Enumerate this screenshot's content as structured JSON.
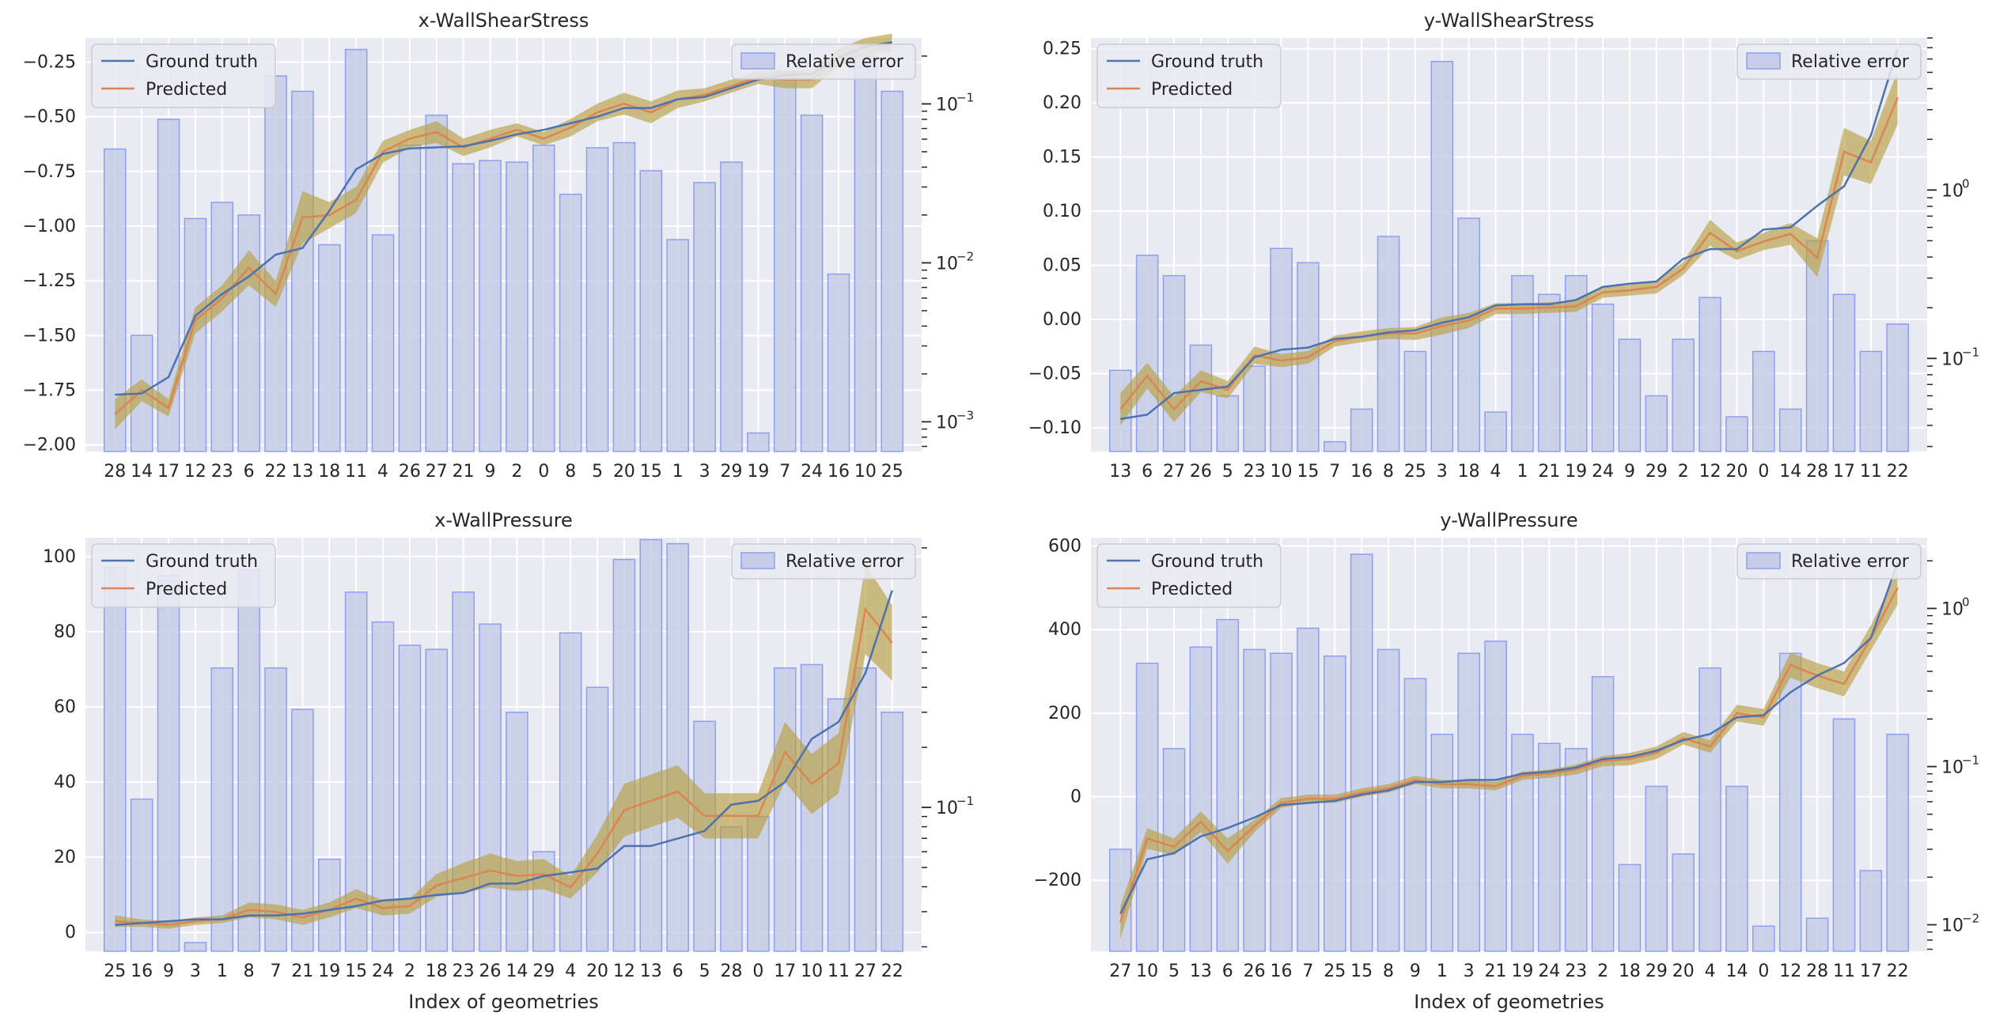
{
  "legend": {
    "ground_truth": "Ground truth",
    "predicted": "Predicted",
    "relative_error": "Relative error"
  },
  "xlabel": "Index of geometries",
  "colors": {
    "ground_truth": "#4c72b0",
    "predicted": "#dd8452",
    "band": "#b8a040",
    "bar_fill": "#c6cde8",
    "bar_edge": "#8f9ef0",
    "axes_bg": "#eaeaf2",
    "grid": "#ffffff"
  },
  "chart_data": [
    {
      "type": "line",
      "title": "x-WallShearStress",
      "categories": [
        "28",
        "14",
        "17",
        "12",
        "23",
        "6",
        "22",
        "13",
        "18",
        "11",
        "4",
        "26",
        "27",
        "21",
        "9",
        "2",
        "0",
        "8",
        "5",
        "20",
        "15",
        "1",
        "3",
        "29",
        "19",
        "7",
        "24",
        "16",
        "10",
        "25"
      ],
      "ground_truth": [
        -1.77,
        -1.765,
        -1.69,
        -1.41,
        -1.31,
        -1.23,
        -1.13,
        -1.1,
        -0.93,
        -0.74,
        -0.67,
        -0.645,
        -0.64,
        -0.635,
        -0.61,
        -0.58,
        -0.56,
        -0.53,
        -0.5,
        -0.46,
        -0.46,
        -0.42,
        -0.41,
        -0.37,
        -0.33,
        -0.31,
        -0.305,
        -0.23,
        -0.18,
        -0.16
      ],
      "predicted": [
        -1.86,
        -1.75,
        -1.83,
        -1.43,
        -1.33,
        -1.19,
        -1.31,
        -0.96,
        -0.95,
        -0.88,
        -0.66,
        -0.6,
        -0.57,
        -0.64,
        -0.6,
        -0.56,
        -0.6,
        -0.55,
        -0.48,
        -0.44,
        -0.48,
        -0.42,
        -0.4,
        -0.36,
        -0.32,
        -0.33,
        -0.33,
        -0.23,
        -0.18,
        -0.16
      ],
      "band": [
        0.07,
        0.05,
        0.04,
        0.06,
        0.06,
        0.08,
        0.06,
        0.12,
        0.06,
        0.06,
        0.05,
        0.04,
        0.05,
        0.04,
        0.04,
        0.03,
        0.03,
        0.04,
        0.04,
        0.05,
        0.05,
        0.04,
        0.03,
        0.03,
        0.03,
        0.04,
        0.04,
        0.04,
        0.04,
        0.04
      ],
      "relative_error": [
        0.052,
        0.0035,
        0.08,
        0.019,
        0.024,
        0.02,
        0.15,
        0.12,
        0.013,
        0.22,
        0.015,
        0.055,
        0.085,
        0.042,
        0.044,
        0.043,
        0.055,
        0.027,
        0.053,
        0.057,
        0.038,
        0.014,
        0.032,
        0.043,
        0.00085,
        0.16,
        0.085,
        0.0085,
        0.2,
        0.12
      ],
      "ylim": [
        -2.03,
        -0.14
      ],
      "yticks": [
        -2.0,
        -1.75,
        -1.5,
        -1.25,
        -1.0,
        -0.75,
        -0.5,
        -0.25
      ],
      "ytick_labels": [
        "−2.00",
        "−1.75",
        "−1.50",
        "−1.25",
        "−1.00",
        "−0.75",
        "−0.50",
        "−0.25"
      ],
      "y2lim": [
        0.00065,
        0.26
      ],
      "y2major": [
        0.001,
        0.01,
        0.1
      ],
      "y2major_labels": [
        "10",
        "10",
        "10"
      ],
      "y2major_exps": [
        "−3",
        "−2",
        "−1"
      ],
      "xlabel": ""
    },
    {
      "type": "line",
      "title": "y-WallShearStress",
      "categories": [
        "13",
        "6",
        "27",
        "26",
        "5",
        "23",
        "10",
        "15",
        "7",
        "16",
        "8",
        "25",
        "3",
        "18",
        "4",
        "1",
        "21",
        "19",
        "24",
        "9",
        "29",
        "2",
        "12",
        "20",
        "0",
        "14",
        "28",
        "17",
        "11",
        "22"
      ],
      "ground_truth": [
        -0.092,
        -0.088,
        -0.068,
        -0.065,
        -0.062,
        -0.035,
        -0.028,
        -0.026,
        -0.018,
        -0.016,
        -0.012,
        -0.01,
        -0.003,
        0.002,
        0.013,
        0.014,
        0.014,
        0.018,
        0.03,
        0.033,
        0.035,
        0.056,
        0.065,
        0.065,
        0.083,
        0.085,
        0.105,
        0.123,
        0.17,
        0.25
      ],
      "predicted": [
        -0.083,
        -0.052,
        -0.083,
        -0.057,
        -0.065,
        -0.033,
        -0.038,
        -0.035,
        -0.02,
        -0.016,
        -0.013,
        -0.013,
        -0.006,
        -0.001,
        0.01,
        0.01,
        0.011,
        0.012,
        0.025,
        0.027,
        0.03,
        0.047,
        0.08,
        0.063,
        0.072,
        0.079,
        0.057,
        0.155,
        0.145,
        0.205
      ],
      "band": [
        0.015,
        0.012,
        0.012,
        0.01,
        0.008,
        0.008,
        0.006,
        0.006,
        0.005,
        0.005,
        0.005,
        0.006,
        0.008,
        0.007,
        0.005,
        0.005,
        0.005,
        0.005,
        0.005,
        0.005,
        0.006,
        0.006,
        0.012,
        0.008,
        0.008,
        0.01,
        0.018,
        0.022,
        0.02,
        0.025
      ],
      "relative_error": [
        0.085,
        0.41,
        0.31,
        0.12,
        0.06,
        0.09,
        0.45,
        0.37,
        0.032,
        0.05,
        0.53,
        0.11,
        5.8,
        0.68,
        0.048,
        0.31,
        0.24,
        0.31,
        0.21,
        0.13,
        0.06,
        0.13,
        0.23,
        0.045,
        0.11,
        0.05,
        0.5,
        0.24,
        0.11,
        0.16
      ],
      "ylim": [
        -0.122,
        0.26
      ],
      "yticks": [
        -0.1,
        -0.05,
        0.0,
        0.05,
        0.1,
        0.15,
        0.2,
        0.25
      ],
      "ytick_labels": [
        "−0.10",
        "−0.05",
        "0.00",
        "0.05",
        "0.10",
        "0.15",
        "0.20",
        "0.25"
      ],
      "y2lim": [
        0.028,
        8.0
      ],
      "y2major": [
        0.1,
        1
      ],
      "y2major_labels": [
        "10",
        "10"
      ],
      "y2major_exps": [
        "−1",
        "0"
      ],
      "xlabel": ""
    },
    {
      "type": "line",
      "title": "x-WallPressure",
      "categories": [
        "25",
        "16",
        "9",
        "3",
        "1",
        "8",
        "7",
        "21",
        "19",
        "15",
        "24",
        "2",
        "18",
        "23",
        "26",
        "14",
        "29",
        "4",
        "20",
        "12",
        "13",
        "6",
        "5",
        "28",
        "0",
        "17",
        "10",
        "11",
        "27",
        "22"
      ],
      "ground_truth": [
        2,
        2.5,
        3,
        3.5,
        3.5,
        4.5,
        4.5,
        5,
        6,
        7,
        8.5,
        9,
        10,
        10.5,
        13,
        13,
        15,
        16,
        17,
        23,
        23,
        25,
        27,
        34,
        35,
        40,
        51.5,
        56,
        69,
        91
      ],
      "predicted": [
        3,
        2.5,
        2,
        3,
        3.5,
        6,
        5.5,
        4,
        6,
        9,
        6.5,
        7,
        12.5,
        14.5,
        16.5,
        15,
        15.5,
        12,
        21,
        32.5,
        35,
        37.5,
        31,
        31,
        31,
        48,
        39.5,
        45,
        86,
        77
      ],
      "band": [
        1.5,
        1,
        1,
        1,
        1,
        2,
        2,
        2,
        2,
        2.5,
        2,
        2,
        3,
        4,
        4.5,
        4,
        4,
        3,
        5,
        7,
        7,
        7,
        6,
        6,
        6,
        8,
        8,
        8,
        12,
        10
      ],
      "relative_error": [
        1.6,
        0.11,
        1.45,
        0.021,
        0.5,
        1.55,
        0.5,
        0.31,
        0.055,
        1.2,
        0.85,
        0.65,
        0.62,
        1.2,
        0.83,
        0.3,
        0.06,
        0.75,
        0.4,
        1.75,
        2.2,
        2.1,
        0.27,
        0.08,
        0.09,
        0.5,
        0.52,
        0.35,
        0.5,
        0.3
      ],
      "ylim": [
        -5,
        105
      ],
      "yticks": [
        0,
        20,
        40,
        60,
        80,
        100
      ],
      "ytick_labels": [
        "0",
        "20",
        "40",
        "60",
        "80",
        "100"
      ],
      "y2lim": [
        0.019,
        2.25
      ],
      "y2major": [
        0.1
      ],
      "y2major_labels": [
        "10"
      ],
      "y2major_exps": [
        "−1"
      ],
      "xlabel": "Index of geometries"
    },
    {
      "type": "line",
      "title": "y-WallPressure",
      "categories": [
        "27",
        "10",
        "5",
        "13",
        "6",
        "26",
        "16",
        "7",
        "25",
        "15",
        "8",
        "9",
        "1",
        "3",
        "21",
        "19",
        "24",
        "23",
        "2",
        "18",
        "29",
        "20",
        "4",
        "14",
        "0",
        "12",
        "28",
        "11",
        "17",
        "22"
      ],
      "ground_truth": [
        -280,
        -150,
        -135,
        -95,
        -75,
        -50,
        -20,
        -15,
        -10,
        5,
        15,
        35,
        35,
        40,
        40,
        55,
        60,
        70,
        90,
        95,
        110,
        135,
        150,
        190,
        195,
        250,
        290,
        320,
        380,
        560
      ],
      "predicted": [
        -300,
        -100,
        -120,
        -60,
        -130,
        -70,
        -15,
        -5,
        -5,
        10,
        20,
        40,
        30,
        30,
        25,
        50,
        55,
        65,
        85,
        90,
        105,
        140,
        120,
        200,
        190,
        315,
        290,
        270,
        380,
        500
      ],
      "band": [
        40,
        25,
        20,
        25,
        30,
        15,
        12,
        10,
        10,
        10,
        10,
        10,
        10,
        10,
        10,
        10,
        10,
        12,
        12,
        15,
        15,
        15,
        15,
        20,
        20,
        30,
        30,
        30,
        30,
        40
      ],
      "relative_error": [
        0.03,
        0.45,
        0.13,
        0.57,
        0.85,
        0.55,
        0.52,
        0.75,
        0.5,
        2.2,
        0.55,
        0.36,
        0.16,
        0.52,
        0.62,
        0.16,
        0.14,
        0.13,
        0.37,
        0.024,
        0.075,
        0.028,
        0.42,
        0.075,
        0.0098,
        0.52,
        0.011,
        0.2,
        0.022,
        0.16
      ],
      "ylim": [
        -370,
        620
      ],
      "yticks": [
        -200,
        0,
        200,
        400,
        600
      ],
      "ytick_labels": [
        "−200",
        "0",
        "200",
        "400",
        "600"
      ],
      "y2lim": [
        0.0068,
        2.8
      ],
      "y2major": [
        0.01,
        0.1,
        1
      ],
      "y2major_labels": [
        "10",
        "10",
        "10"
      ],
      "y2major_exps": [
        "−2",
        "−1",
        "0"
      ],
      "xlabel": "Index of geometries"
    }
  ]
}
